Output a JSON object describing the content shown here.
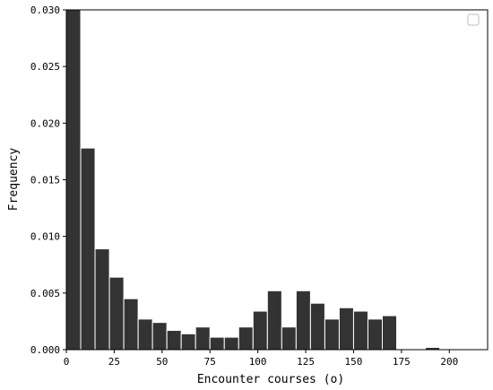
{
  "chart_data": {
    "type": "bar",
    "title": "",
    "xlabel": "Encounter courses (o)",
    "ylabel": "Frequency",
    "xlim": [
      0,
      220
    ],
    "ylim": [
      0,
      0.03
    ],
    "xticks": [
      0,
      25,
      50,
      75,
      100,
      125,
      150,
      175,
      200
    ],
    "yticks": [
      0.0,
      0.005,
      0.01,
      0.015,
      0.02,
      0.025,
      0.03
    ],
    "ytick_labels": [
      "0.000",
      "0.005",
      "0.010",
      "0.015",
      "0.020",
      "0.025",
      "0.030"
    ],
    "bin_width": 7.5,
    "bins": [
      {
        "x_start": 0.0,
        "value": 0.03
      },
      {
        "x_start": 7.5,
        "value": 0.0178
      },
      {
        "x_start": 15.0,
        "value": 0.0089
      },
      {
        "x_start": 22.5,
        "value": 0.0064
      },
      {
        "x_start": 30.0,
        "value": 0.0045
      },
      {
        "x_start": 37.5,
        "value": 0.0027
      },
      {
        "x_start": 45.0,
        "value": 0.0024
      },
      {
        "x_start": 52.5,
        "value": 0.0017
      },
      {
        "x_start": 60.0,
        "value": 0.0014
      },
      {
        "x_start": 67.5,
        "value": 0.002
      },
      {
        "x_start": 75.0,
        "value": 0.0011
      },
      {
        "x_start": 82.5,
        "value": 0.0011
      },
      {
        "x_start": 90.0,
        "value": 0.002
      },
      {
        "x_start": 97.5,
        "value": 0.0034
      },
      {
        "x_start": 105.0,
        "value": 0.0052
      },
      {
        "x_start": 112.5,
        "value": 0.002
      },
      {
        "x_start": 120.0,
        "value": 0.0052
      },
      {
        "x_start": 127.5,
        "value": 0.0041
      },
      {
        "x_start": 135.0,
        "value": 0.0027
      },
      {
        "x_start": 142.5,
        "value": 0.0037
      },
      {
        "x_start": 150.0,
        "value": 0.0034
      },
      {
        "x_start": 157.5,
        "value": 0.0027
      },
      {
        "x_start": 165.0,
        "value": 0.003
      },
      {
        "x_start": 187.5,
        "value": 0.0002
      }
    ],
    "bar_color": "#333333",
    "edge_color": "#ffffff",
    "grid": false,
    "legend": {
      "placement": "top-right",
      "entries": []
    }
  }
}
